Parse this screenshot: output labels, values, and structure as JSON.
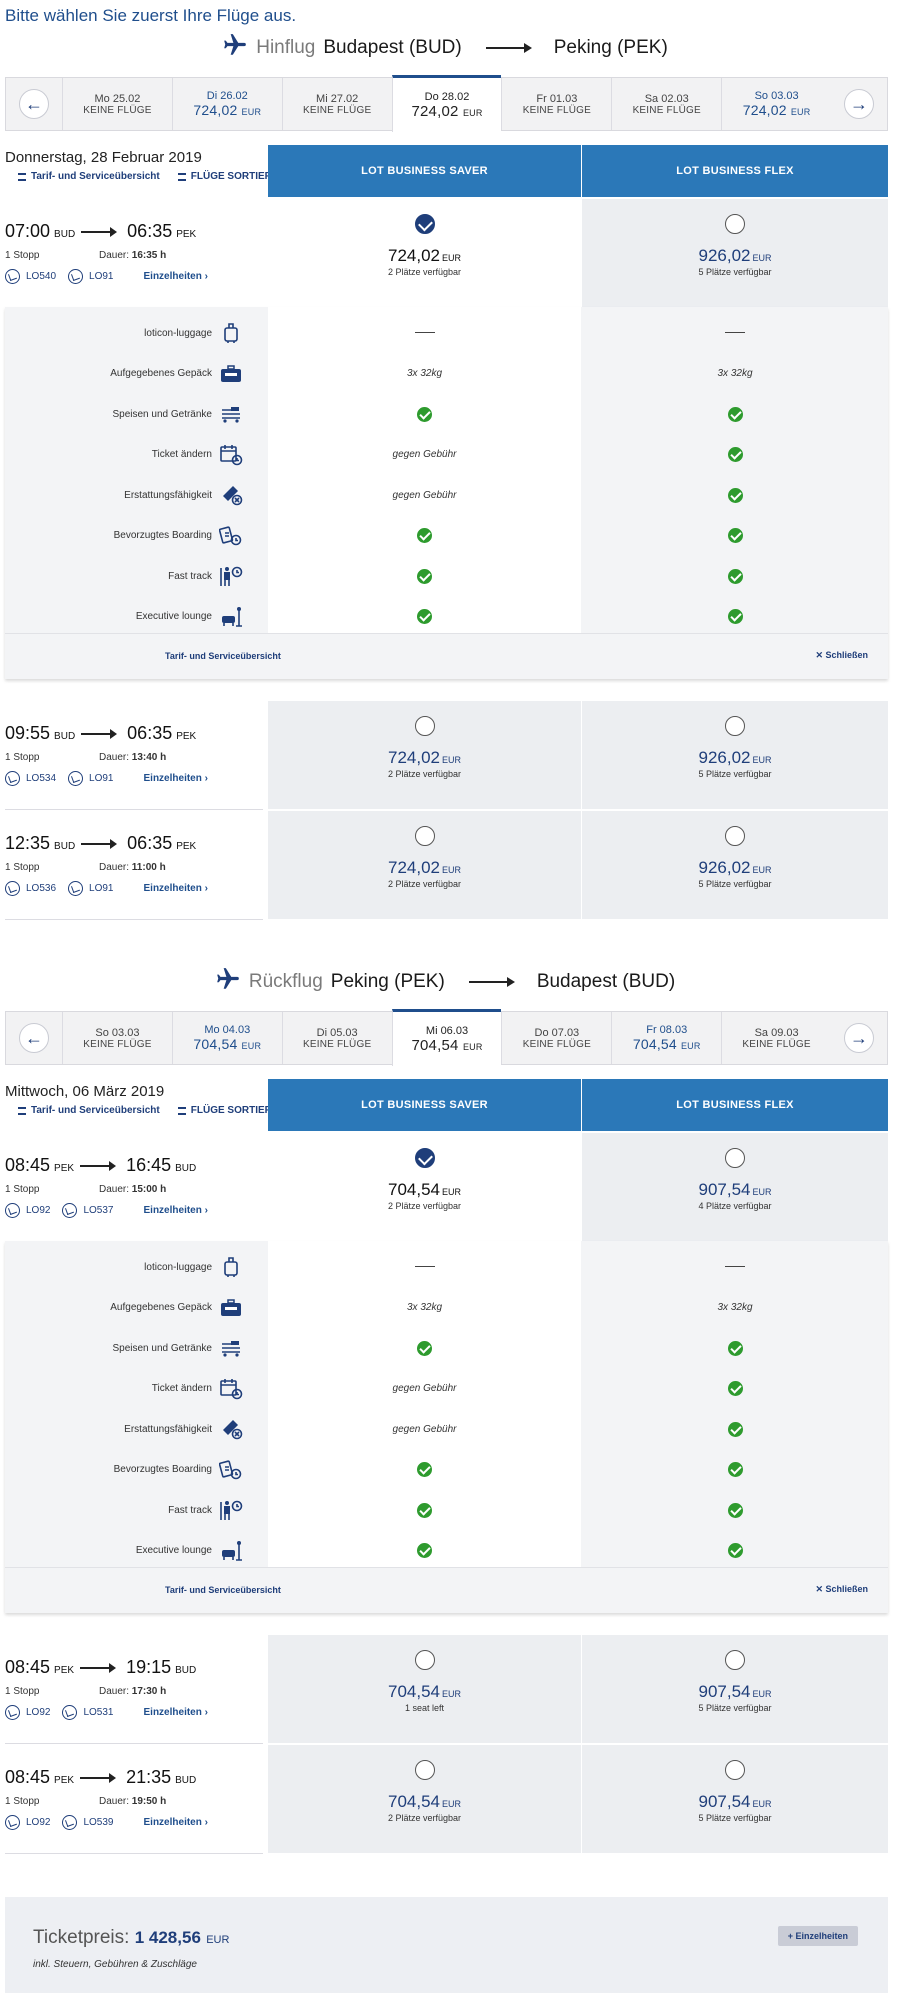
{
  "hint": "Bitte wählen Sie zuerst Ihre Flüge aus.",
  "outbound": {
    "dir_label": "Hinflug",
    "from": "Budapest (BUD)",
    "to": "Peking (PEK)",
    "dates": [
      {
        "d": "Mo 25.02",
        "p": "KEINE FLÜGE"
      },
      {
        "d": "Di 26.02",
        "p": "724,02",
        "cur": "EUR"
      },
      {
        "d": "Mi 27.02",
        "p": "KEINE FLÜGE"
      },
      {
        "d": "Do 28.02",
        "p": "724,02",
        "cur": "EUR"
      },
      {
        "d": "Fr 01.03",
        "p": "KEINE FLÜGE"
      },
      {
        "d": "Sa 02.03",
        "p": "KEINE FLÜGE"
      },
      {
        "d": "So 03.03",
        "p": "724,02",
        "cur": "EUR"
      }
    ],
    "section_date": "Donnerstag, 28 Februar 2019",
    "link_overview": "Tarif- und Serviceübersicht",
    "link_sort": "FLÜGE SORTIEREN",
    "fare_saver": "LOT BUSINESS SAVER",
    "fare_flex": "LOT BUSINESS FLEX",
    "flights": [
      {
        "dep": "07:00",
        "dep_ap": "BUD",
        "arr": "06:35",
        "arr_ap": "PEK",
        "stops": "1 Stopp",
        "dur_label": "Dauer:",
        "dur": "16:35 h",
        "code1": "LO540",
        "code2": "LO91",
        "details": "Einzelheiten ›",
        "saver_price": "724,02",
        "saver_seats": "2 Plätze verfügbar",
        "flex_price": "926,02",
        "flex_seats": "5 Plätze verfügbar"
      },
      {
        "dep": "09:55",
        "dep_ap": "BUD",
        "arr": "06:35",
        "arr_ap": "PEK",
        "stops": "1 Stopp",
        "dur_label": "Dauer:",
        "dur": "13:40 h",
        "code1": "LO534",
        "code2": "LO91",
        "details": "Einzelheiten ›",
        "saver_price": "724,02",
        "saver_seats": "2 Plätze verfügbar",
        "flex_price": "926,02",
        "flex_seats": "5 Plätze verfügbar"
      },
      {
        "dep": "12:35",
        "dep_ap": "BUD",
        "arr": "06:35",
        "arr_ap": "PEK",
        "stops": "1 Stopp",
        "dur_label": "Dauer:",
        "dur": "11:00 h",
        "code1": "LO536",
        "code2": "LO91",
        "details": "Einzelheiten ›",
        "saver_price": "724,02",
        "saver_seats": "2 Plätze verfügbar",
        "flex_price": "926,02",
        "flex_seats": "5 Plätze verfügbar"
      }
    ]
  },
  "inbound": {
    "dir_label": "Rückflug",
    "from": "Peking (PEK)",
    "to": "Budapest (BUD)",
    "dates": [
      {
        "d": "So 03.03",
        "p": "KEINE FLÜGE"
      },
      {
        "d": "Mo 04.03",
        "p": "704,54",
        "cur": "EUR"
      },
      {
        "d": "Di 05.03",
        "p": "KEINE FLÜGE"
      },
      {
        "d": "Mi 06.03",
        "p": "704,54",
        "cur": "EUR"
      },
      {
        "d": "Do 07.03",
        "p": "KEINE FLÜGE"
      },
      {
        "d": "Fr 08.03",
        "p": "704,54",
        "cur": "EUR"
      },
      {
        "d": "Sa 09.03",
        "p": "KEINE FLÜGE"
      }
    ],
    "section_date": "Mittwoch, 06 März 2019",
    "link_overview": "Tarif- und Serviceübersicht",
    "link_sort": "FLÜGE SORTIEREN",
    "fare_saver": "LOT BUSINESS SAVER",
    "fare_flex": "LOT BUSINESS FLEX",
    "flights": [
      {
        "dep": "08:45",
        "dep_ap": "PEK",
        "arr": "16:45",
        "arr_ap": "BUD",
        "stops": "1 Stopp",
        "dur_label": "Dauer:",
        "dur": "15:00 h",
        "code1": "LO92",
        "code2": "LO537",
        "details": "Einzelheiten ›",
        "saver_price": "704,54",
        "saver_seats": "2 Plätze verfügbar",
        "flex_price": "907,54",
        "flex_seats": "4 Plätze verfügbar"
      },
      {
        "dep": "08:45",
        "dep_ap": "PEK",
        "arr": "19:15",
        "arr_ap": "BUD",
        "stops": "1 Stopp",
        "dur_label": "Dauer:",
        "dur": "17:30 h",
        "code1": "LO92",
        "code2": "LO531",
        "details": "Einzelheiten ›",
        "saver_price": "704,54",
        "saver_seats": "1 seat left",
        "flex_price": "907,54",
        "flex_seats": "5 Plätze verfügbar"
      },
      {
        "dep": "08:45",
        "dep_ap": "PEK",
        "arr": "21:35",
        "arr_ap": "BUD",
        "stops": "1 Stopp",
        "dur_label": "Dauer:",
        "dur": "19:50 h",
        "code1": "LO92",
        "code2": "LO539",
        "details": "Einzelheiten ›",
        "saver_price": "704,54",
        "saver_seats": "2 Plätze verfügbar",
        "flex_price": "907,54",
        "flex_seats": "5 Plätze verfügbar"
      }
    ]
  },
  "features": [
    {
      "label": "loticon-luggage",
      "icon": "luggage-icon",
      "saver": "dash",
      "flex": "dash"
    },
    {
      "label": "Aufgegebenes Gepäck",
      "icon": "suitcase-icon",
      "saver": "3x 32kg",
      "flex": "3x 32kg"
    },
    {
      "label": "Speisen und Getränke",
      "icon": "food-trolley-icon",
      "saver": "check",
      "flex": "check"
    },
    {
      "label": "Ticket ändern",
      "icon": "calendar-change-icon",
      "saver": "gegen Gebühr",
      "flex": "check"
    },
    {
      "label": "Erstattungsfähigkeit",
      "icon": "refund-ticket-icon",
      "saver": "gegen Gebühr",
      "flex": "check"
    },
    {
      "label": "Bevorzugtes Boarding",
      "icon": "priority-boarding-icon",
      "saver": "check",
      "flex": "check"
    },
    {
      "label": "Fast track",
      "icon": "fast-track-icon",
      "saver": "check",
      "flex": "check"
    },
    {
      "label": "Executive lounge",
      "icon": "lounge-icon",
      "saver": "check",
      "flex": "check"
    }
  ],
  "feature_footer": {
    "overview": "Tarif- und Serviceübersicht",
    "close": "Schließen"
  },
  "currency": "EUR",
  "ticket": {
    "label": "Ticketpreis:",
    "amount": "1 428,56",
    "currency": "EUR",
    "sub": "inkl. Steuern, Gebühren & Zuschläge",
    "details_button": "+ Einzelheiten"
  },
  "colors": {
    "brand_blue": "#1f3e7a",
    "header_blue": "#2b78b8",
    "check_green": "#2e9b2e"
  }
}
